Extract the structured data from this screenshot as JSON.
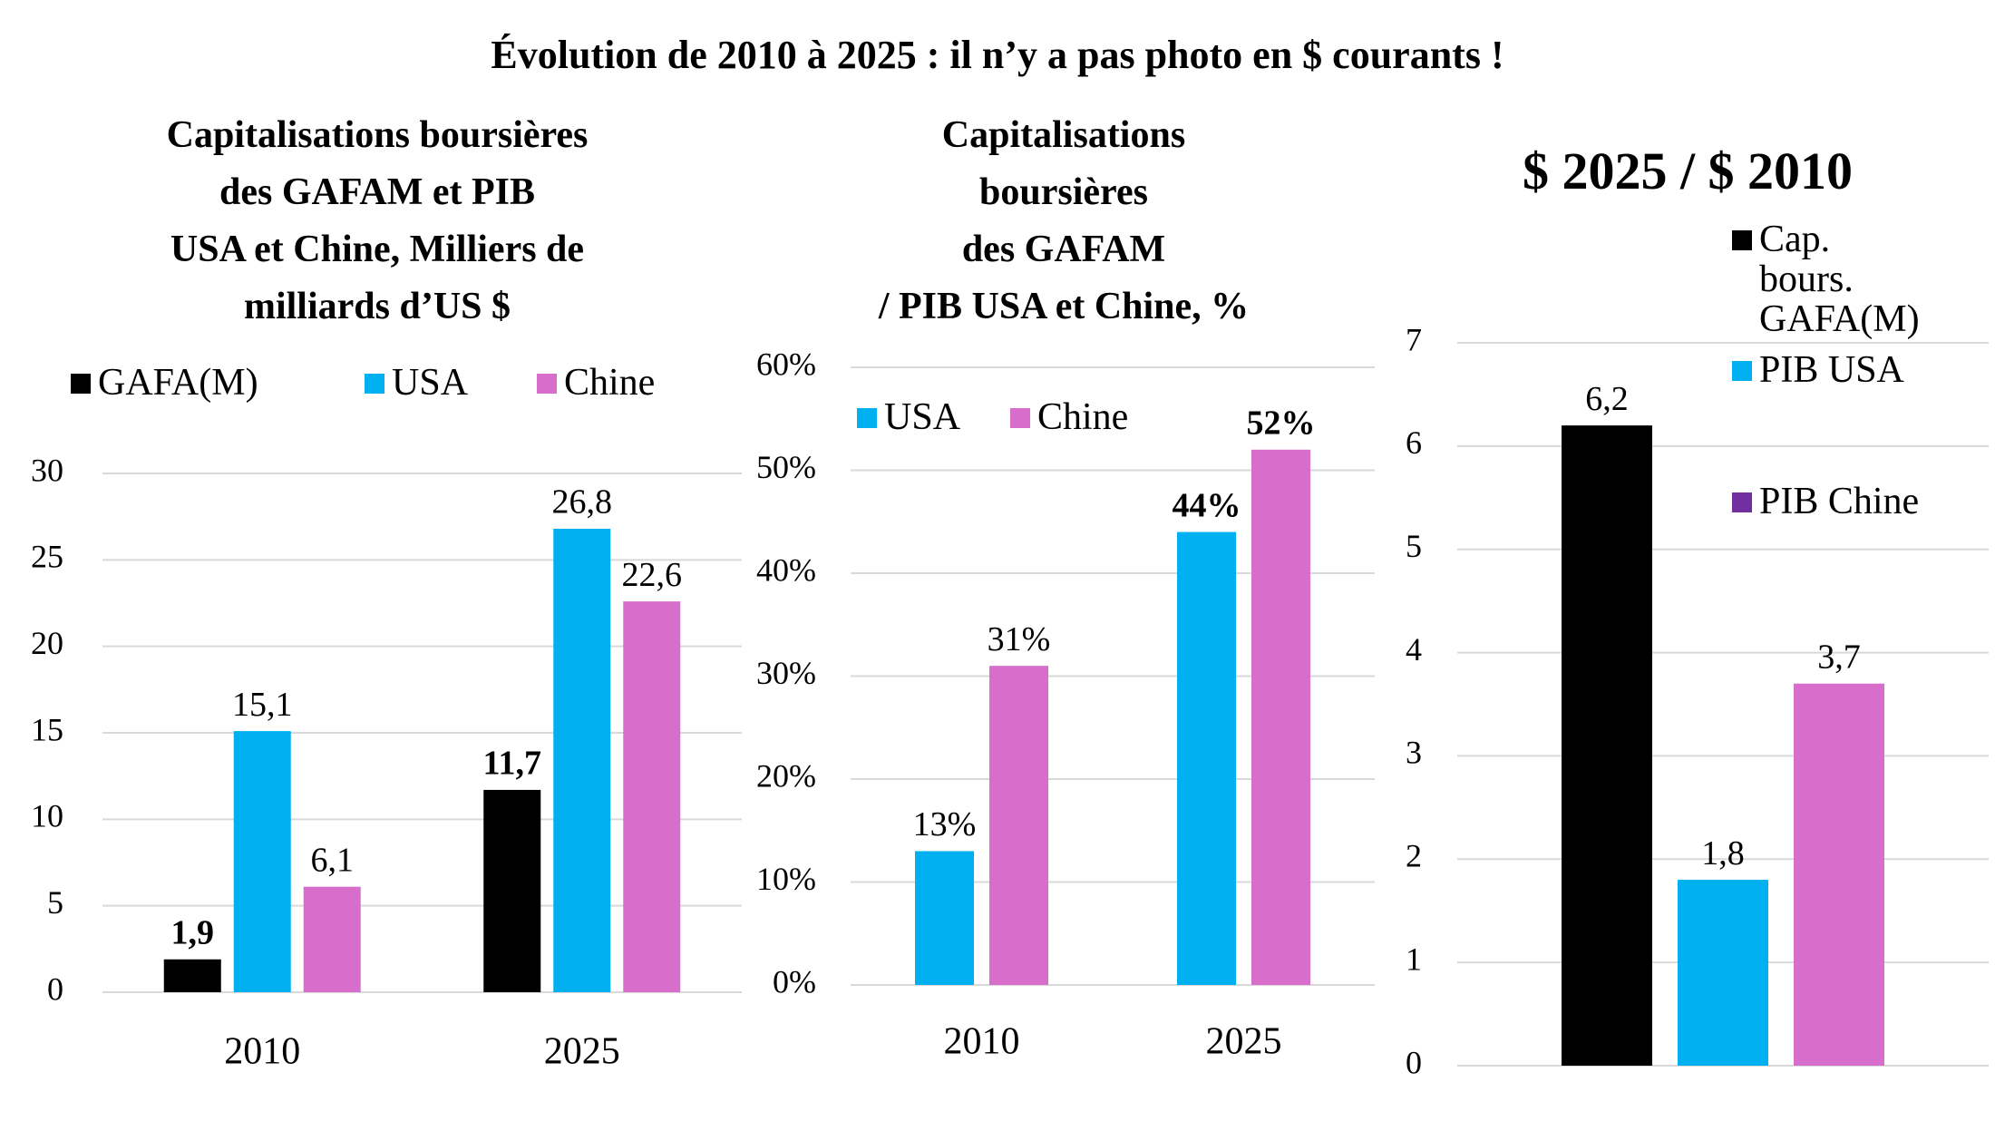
{
  "title": "Évolution de 2010 à 2025 : il n’y a pas photo en $ courants !",
  "chart_data": [
    {
      "type": "bar",
      "title": "Capitalisations boursières\ndes GAFAM et PIB\nUSA et Chine, Milliers de\nmilliards d’US $",
      "categories": [
        "2010",
        "2025"
      ],
      "series": [
        {
          "name": "GAFA(M)",
          "color": "#000000",
          "values": [
            1.9,
            11.7
          ],
          "value_labels": [
            "1,9",
            "11,7"
          ]
        },
        {
          "name": "USA",
          "color": "#00b0f0",
          "values": [
            15.1,
            26.8
          ],
          "value_labels": [
            "15,1",
            "26,8"
          ]
        },
        {
          "name": "Chine",
          "color": "#d86ecc",
          "values": [
            6.1,
            22.6
          ],
          "value_labels": [
            "6,1",
            "22,6"
          ]
        }
      ],
      "ylim": [
        0,
        30
      ],
      "yticks": [
        0,
        5,
        10,
        15,
        20,
        25,
        30
      ],
      "grid": true
    },
    {
      "type": "bar",
      "title": "Capitalisations\nboursières\ndes GAFAM\n/ PIB USA et Chine, %",
      "categories": [
        "2010",
        "2025"
      ],
      "series": [
        {
          "name": "USA",
          "color": "#00b0f0",
          "values": [
            13,
            44
          ],
          "value_labels": [
            "13%",
            "44%"
          ]
        },
        {
          "name": "Chine",
          "color": "#d86ecc",
          "values": [
            31,
            52
          ],
          "value_labels": [
            "31%",
            "52%"
          ]
        }
      ],
      "ylim": [
        0,
        60
      ],
      "yticks": [
        {
          "value": 0,
          "label": "0%"
        },
        {
          "value": 10,
          "label": "10%"
        },
        {
          "value": 20,
          "label": "20%"
        },
        {
          "value": 30,
          "label": "30%"
        },
        {
          "value": 40,
          "label": "40%"
        },
        {
          "value": 50,
          "label": "50%"
        },
        {
          "value": 60,
          "label": "60%"
        }
      ],
      "grid": true
    },
    {
      "type": "bar",
      "title": "$ 2025 / $ 2010",
      "categories": [
        null
      ],
      "series": [
        {
          "name": "Cap.\nbours.\nGAFA(M)",
          "color": "#000000",
          "values": [
            6.2
          ],
          "value_labels": [
            "6,2"
          ]
        },
        {
          "name": "PIB USA",
          "color": "#00b0f0",
          "values": [
            1.8
          ],
          "value_labels": [
            "1,8"
          ]
        },
        {
          "name": "PIB Chine",
          "color": "#d86ecc",
          "legend_color": "#7030a0",
          "values": [
            3.7
          ],
          "value_labels": [
            "3,7"
          ]
        }
      ],
      "ylim": [
        0,
        7
      ],
      "yticks": [
        0,
        1,
        2,
        3,
        4,
        5,
        6,
        7
      ],
      "grid": true
    }
  ]
}
